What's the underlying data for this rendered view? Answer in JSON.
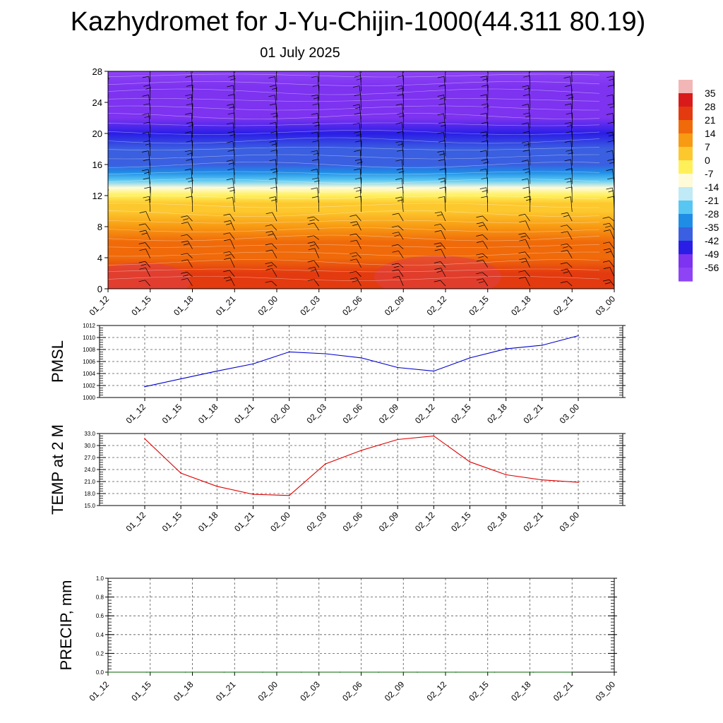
{
  "title": "Kazhydromet for J-Yu-Chijin-1000(44.311 80.19)",
  "subtitle": "01 July 2025",
  "chart_data": [
    {
      "type": "heatmap",
      "description_note": "",
      "x_tick_labels": [
        "01_12",
        "01_15",
        "01_18",
        "01_21",
        "02_00",
        "02_03",
        "02_06",
        "02_09",
        "02_12",
        "02_15",
        "02_18",
        "02_21",
        "03_00"
      ],
      "y_ticks": [
        0,
        4,
        8,
        12,
        16,
        20,
        24,
        28
      ],
      "ylim": [
        0,
        28
      ],
      "colorbar_labels": [
        "35",
        "28",
        "21",
        "14",
        "7",
        "0",
        "-7",
        "-14",
        "-21",
        "-28",
        "-35",
        "-42",
        "-49",
        "-56"
      ],
      "colorbar_range": [
        -63,
        42
      ],
      "vertical_profile_temperature": [
        {
          "level": 0,
          "value": 30
        },
        {
          "level": 2,
          "value": 27
        },
        {
          "level": 4,
          "value": 23
        },
        {
          "level": 6,
          "value": 18
        },
        {
          "level": 8,
          "value": 12
        },
        {
          "level": 10,
          "value": 7
        },
        {
          "level": 11,
          "value": 3
        },
        {
          "level": 12,
          "value": -2
        },
        {
          "level": 13,
          "value": -14
        },
        {
          "level": 14,
          "value": -24
        },
        {
          "level": 15,
          "value": -32
        },
        {
          "level": 16,
          "value": -38
        },
        {
          "level": 18,
          "value": -43
        },
        {
          "level": 20,
          "value": -47
        },
        {
          "level": 22,
          "value": -52
        },
        {
          "level": 24,
          "value": -55
        },
        {
          "level": 26,
          "value": -58
        },
        {
          "level": 28,
          "value": -60
        }
      ],
      "overlay": "wind barbs",
      "colors": [
        "#f2b6b6",
        "#d91a1a",
        "#e33a10",
        "#f06a0a",
        "#f89a12",
        "#fdc82e",
        "#fff05a",
        "#fffbd8",
        "#bfeaf6",
        "#58c6f2",
        "#1f8ce6",
        "#3a5fe0",
        "#2a1ee6",
        "#7d33f0",
        "#8e44f5"
      ]
    },
    {
      "type": "line",
      "ylabel": "PMSL",
      "x": [
        "01_12",
        "01_15",
        "01_18",
        "01_21",
        "02_00",
        "02_03",
        "02_06",
        "02_09",
        "02_12",
        "02_15",
        "02_18",
        "02_21",
        "03_00"
      ],
      "y_ticks": [
        "1000",
        "1002",
        "1004",
        "1006",
        "1008",
        "1010",
        "1012"
      ],
      "ylim": [
        1000,
        1012
      ],
      "series": [
        {
          "color": "#0000cc",
          "values": [
            1001.8,
            1003.1,
            1004.4,
            1005.6,
            1007.6,
            1007.3,
            1006.6,
            1005.0,
            1004.4,
            1006.6,
            1008.1,
            1008.7,
            1010.3
          ]
        }
      ],
      "grid": true
    },
    {
      "type": "line",
      "ylabel": "TEMP at 2 M",
      "x": [
        "01_12",
        "01_15",
        "01_18",
        "01_21",
        "02_00",
        "02_03",
        "02_06",
        "02_09",
        "02_12",
        "02_15",
        "02_18",
        "02_21",
        "03_00"
      ],
      "y_ticks": [
        "15.0",
        "18.0",
        "21.0",
        "24.0",
        "27.0",
        "30.0",
        "33.0"
      ],
      "ylim": [
        15,
        33
      ],
      "series": [
        {
          "color": "#dd0000",
          "values": [
            31.7,
            23.1,
            19.8,
            17.8,
            17.5,
            25.4,
            28.8,
            31.5,
            32.4,
            25.9,
            22.7,
            21.4,
            20.8
          ]
        }
      ],
      "grid": true
    },
    {
      "type": "line",
      "ylabel": "PRECIP, mm",
      "x_tick_labels": [
        "01_12",
        "01_15",
        "01_18",
        "01_21",
        "02_00",
        "02_03",
        "02_06",
        "02_09",
        "02_12",
        "02_15",
        "02_18",
        "02_21",
        "03_00"
      ],
      "y_ticks": [
        "0.0",
        "0.2",
        "0.4",
        "0.6",
        "0.8",
        "1.0"
      ],
      "ylim": [
        0,
        1
      ],
      "series": [
        {
          "color": "#006600",
          "values": [
            0,
            0,
            0,
            0,
            0,
            0,
            0,
            0,
            0,
            0,
            0,
            0,
            0
          ]
        }
      ],
      "grid": true
    }
  ]
}
